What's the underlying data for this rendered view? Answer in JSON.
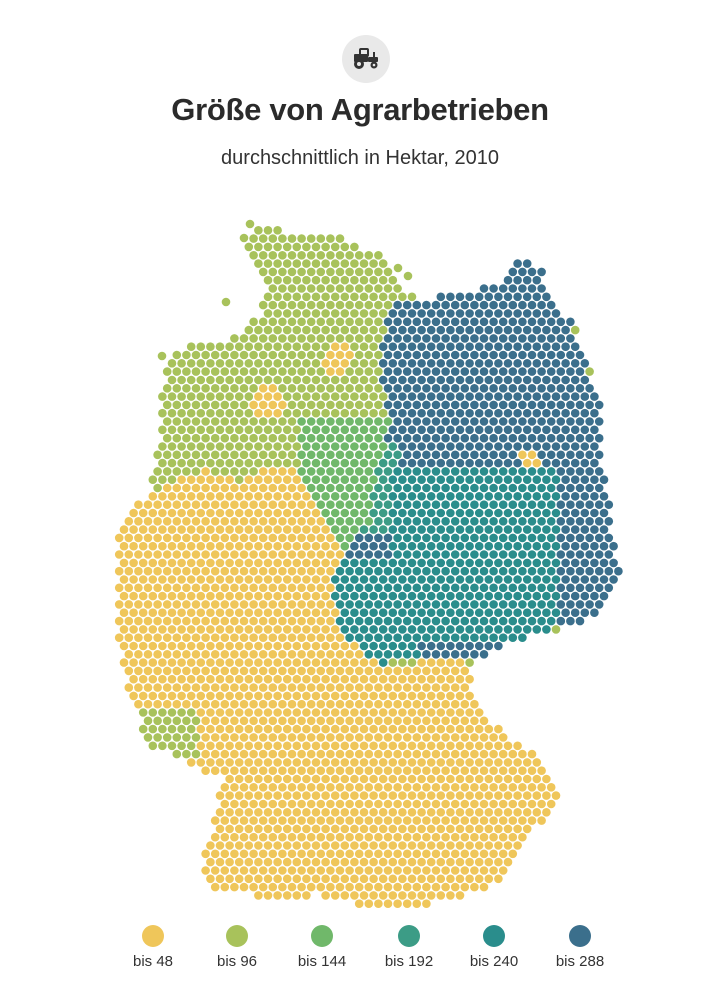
{
  "header": {
    "icon": "tractor-icon",
    "title": "Größe von Agrarbetrieben",
    "subtitle": "durchschnittlich in Hektar, 2010"
  },
  "colors": {
    "bis48": "#efc65a",
    "bis96": "#a8c25b",
    "bis144": "#70b86a",
    "bis192": "#3c9c86",
    "bis240": "#2a8d8c",
    "bis288": "#3b6f8c"
  },
  "legend": [
    {
      "label": "bis 48",
      "color": "#efc65a"
    },
    {
      "label": "bis 96",
      "color": "#a8c25b"
    },
    {
      "label": "bis 144",
      "color": "#70b86a"
    },
    {
      "label": "bis 192",
      "color": "#3c9c86"
    },
    {
      "label": "bis 240",
      "color": "#2a8d8c"
    },
    {
      "label": "bis 288",
      "color": "#3b6f8c"
    }
  ]
}
